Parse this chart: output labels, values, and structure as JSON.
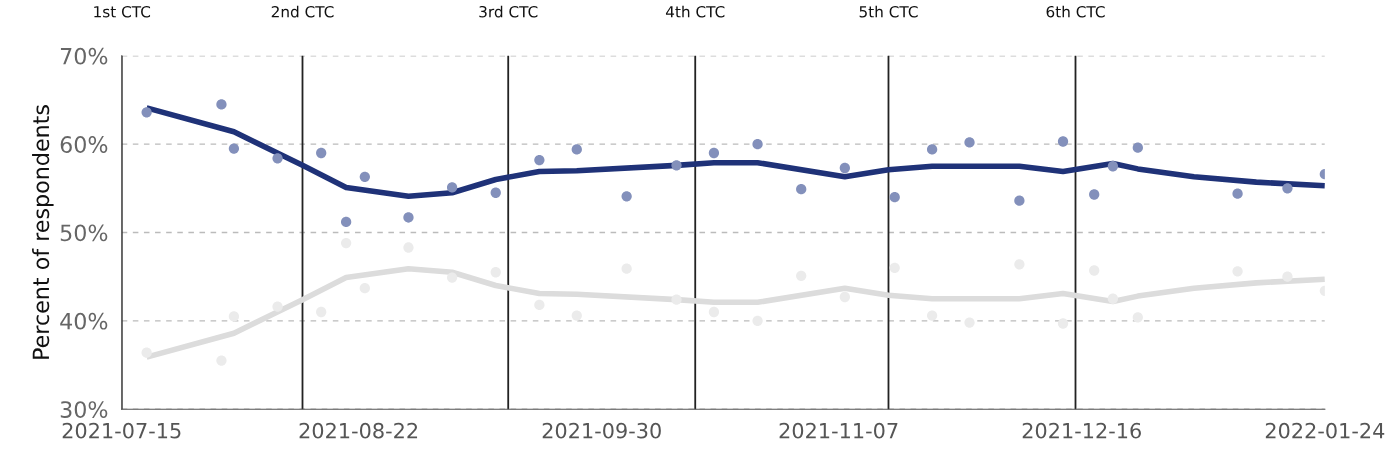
{
  "chart_data": {
    "type": "scatter",
    "ylabel": "Percent of respondents",
    "xlim": [
      "2021-07-15",
      "2022-01-24"
    ],
    "ylim": [
      30,
      70
    ],
    "xticks": [
      "2021-07-15",
      "2021-08-22",
      "2021-09-30",
      "2021-11-07",
      "2021-12-16",
      "2022-01-24"
    ],
    "yticks": [
      {
        "value": 30,
        "label": "30%"
      },
      {
        "value": 40,
        "label": "40%"
      },
      {
        "value": 50,
        "label": "50%"
      },
      {
        "value": 60,
        "label": "60%"
      },
      {
        "value": 70,
        "label": "70%"
      }
    ],
    "grid": "y",
    "legend": false,
    "series": [
      {
        "color": "#8390bb",
        "x": [
          "2021-07-19",
          "2021-07-31",
          "2021-08-02",
          "2021-08-09",
          "2021-08-16",
          "2021-08-20",
          "2021-08-23",
          "2021-08-30",
          "2021-09-06",
          "2021-09-13",
          "2021-09-20",
          "2021-09-26",
          "2021-10-04",
          "2021-10-12",
          "2021-10-18",
          "2021-10-25",
          "2021-11-01",
          "2021-11-08",
          "2021-11-16",
          "2021-11-22",
          "2021-11-28",
          "2021-12-06",
          "2021-12-13",
          "2021-12-18",
          "2021-12-21",
          "2021-12-25",
          "2022-01-10",
          "2022-01-18",
          "2022-01-24"
        ],
        "values": [
          63.6,
          64.5,
          59.5,
          58.4,
          59.0,
          51.2,
          56.3,
          51.7,
          55.1,
          54.5,
          58.2,
          59.4,
          54.1,
          57.6,
          59.0,
          60.0,
          54.9,
          57.3,
          54.0,
          59.4,
          60.2,
          53.6,
          60.3,
          54.3,
          57.5,
          59.6,
          54.4,
          55.0,
          56.6
        ]
      },
      {
        "color": "#ebebeb",
        "x": [
          "2021-07-19",
          "2021-07-31",
          "2021-08-02",
          "2021-08-09",
          "2021-08-16",
          "2021-08-20",
          "2021-08-23",
          "2021-08-30",
          "2021-09-06",
          "2021-09-13",
          "2021-09-20",
          "2021-09-26",
          "2021-10-04",
          "2021-10-12",
          "2021-10-18",
          "2021-10-25",
          "2021-11-01",
          "2021-11-08",
          "2021-11-16",
          "2021-11-22",
          "2021-11-28",
          "2021-12-06",
          "2021-12-13",
          "2021-12-18",
          "2021-12-21",
          "2021-12-25",
          "2022-01-10",
          "2022-01-18",
          "2022-01-24"
        ],
        "values": [
          36.4,
          35.5,
          40.5,
          41.6,
          41.0,
          48.8,
          43.7,
          48.3,
          44.9,
          45.5,
          41.8,
          40.6,
          45.9,
          42.4,
          41.0,
          40.0,
          45.1,
          42.7,
          46.0,
          40.6,
          39.8,
          46.4,
          39.7,
          45.7,
          42.5,
          40.4,
          45.6,
          45.0,
          43.4
        ]
      },
      {
        "type": "line",
        "color": "#dcdcdc",
        "x": [
          "2021-07-19",
          "2021-08-02",
          "2021-08-13",
          "2021-08-20",
          "2021-08-30",
          "2021-09-06",
          "2021-09-13",
          "2021-09-20",
          "2021-09-26",
          "2021-10-12",
          "2021-10-18",
          "2021-10-25",
          "2021-11-08",
          "2021-11-15",
          "2021-11-22",
          "2021-12-06",
          "2021-12-13",
          "2021-12-21",
          "2021-12-25",
          "2022-01-03",
          "2022-01-13",
          "2022-01-24"
        ],
        "values": [
          35.9,
          38.6,
          42.4,
          44.9,
          45.9,
          45.5,
          44.0,
          43.1,
          43.0,
          42.4,
          42.1,
          42.1,
          43.7,
          42.9,
          42.5,
          42.5,
          43.1,
          42.2,
          42.8,
          43.7,
          44.3,
          44.7
        ]
      },
      {
        "type": "line",
        "color": "#1f3278",
        "x": [
          "2021-07-19",
          "2021-08-02",
          "2021-08-13",
          "2021-08-20",
          "2021-08-30",
          "2021-09-06",
          "2021-09-13",
          "2021-09-20",
          "2021-09-26",
          "2021-10-12",
          "2021-10-18",
          "2021-10-25",
          "2021-11-08",
          "2021-11-15",
          "2021-11-22",
          "2021-12-06",
          "2021-12-13",
          "2021-12-21",
          "2021-12-25",
          "2022-01-03",
          "2022-01-13",
          "2022-01-24"
        ],
        "values": [
          64.1,
          61.4,
          57.6,
          55.1,
          54.1,
          54.5,
          56.0,
          56.9,
          57.0,
          57.6,
          57.9,
          57.9,
          56.3,
          57.1,
          57.5,
          57.5,
          56.9,
          57.8,
          57.2,
          56.3,
          55.7,
          55.3
        ]
      }
    ],
    "ref_lines": [
      {
        "axis": "x",
        "value": "2021-07-15",
        "label": "1st CTC",
        "color": "#222222"
      },
      {
        "axis": "x",
        "value": "2021-08-13",
        "label": "2nd CTC",
        "color": "#222222"
      },
      {
        "axis": "x",
        "value": "2021-09-15",
        "label": "3rd CTC",
        "color": "#222222"
      },
      {
        "axis": "x",
        "value": "2021-10-15",
        "label": "4th CTC",
        "color": "#222222"
      },
      {
        "axis": "x",
        "value": "2021-11-15",
        "label": "5th CTC",
        "color": "#222222"
      },
      {
        "axis": "x",
        "value": "2021-12-15",
        "label": "6th CTC",
        "color": "#222222"
      }
    ]
  }
}
